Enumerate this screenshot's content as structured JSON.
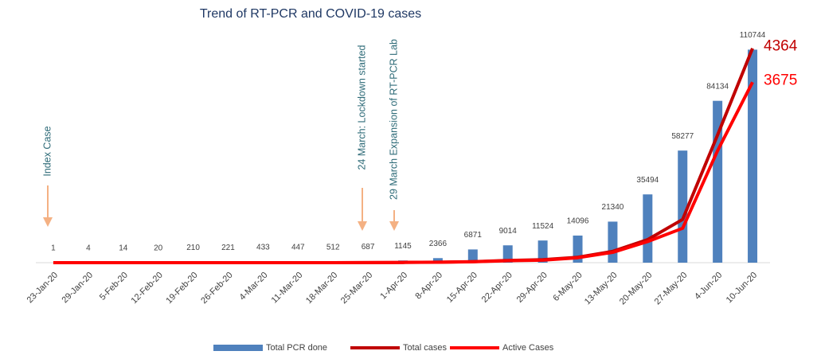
{
  "chart_data": {
    "type": "bar-line",
    "title": "Trend of RT-PCR and COVID-19 cases",
    "categories": [
      "23-Jan-20",
      "29-Jan-20",
      "5-Feb-20",
      "12-Feb-20",
      "19-Feb-20",
      "26-Feb-20",
      "4-Mar-20",
      "11-Mar-20",
      "18-Mar-20",
      "25-Mar-20",
      "1-Apr-20",
      "8-Apr-20",
      "15-Apr-20",
      "22-Apr-20",
      "29-Apr-20",
      "6-May-20",
      "13-May-20",
      "20-May-20",
      "27-May-20",
      "4-Jun-20",
      "10-Jun-20"
    ],
    "series": [
      {
        "name": "Total PCR done",
        "type": "bar",
        "color": "#4f81bd",
        "values": [
          1,
          4,
          14,
          20,
          210,
          221,
          433,
          447,
          512,
          687,
          1145,
          2366,
          6871,
          9014,
          11524,
          14096,
          21340,
          35494,
          58277,
          84134,
          110744
        ]
      },
      {
        "name": "Total  cases",
        "type": "line",
        "axis": "y2",
        "color": "#c00000",
        "values": [
          1,
          1,
          1,
          1,
          1,
          1,
          1,
          1,
          1,
          2,
          5,
          10,
          20,
          45,
          60,
          110,
          230,
          470,
          880,
          2600,
          4364
        ]
      },
      {
        "name": "Active Cases",
        "type": "line",
        "axis": "y2",
        "color": "#ff0000",
        "values": [
          1,
          1,
          1,
          1,
          1,
          1,
          1,
          1,
          1,
          2,
          5,
          9,
          18,
          40,
          50,
          100,
          210,
          430,
          700,
          2280,
          3675
        ]
      }
    ],
    "ylim": [
      0,
      120000
    ],
    "y2lim": [
      0,
      4700
    ],
    "annotations": [
      "Index Case",
      "24 March: Lockdown started",
      "29 March Expansion of RT-PCR Lab"
    ]
  }
}
